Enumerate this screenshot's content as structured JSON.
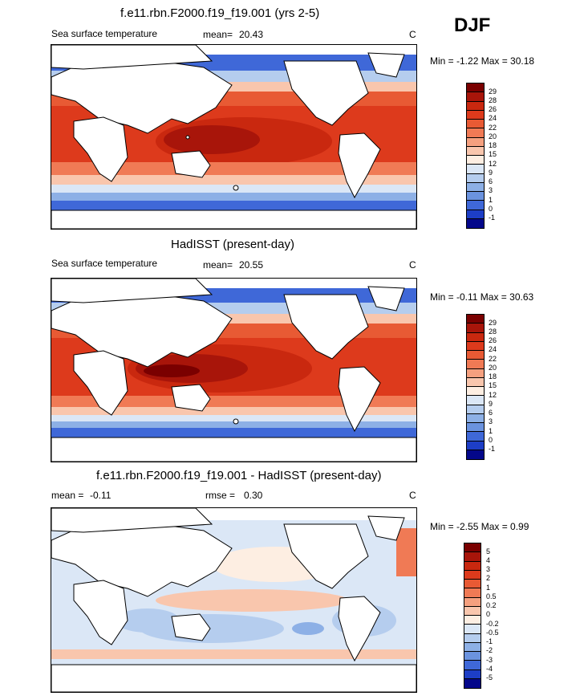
{
  "season": "DJF",
  "panels": [
    {
      "title": "f.e11.rbn.F2000.f19_f19.001 (yrs 2-5)",
      "left_label": "Sea surface temperature",
      "stat1_label": "mean=",
      "stat1_value": "20.43",
      "stat2_label": "",
      "stat2_value": "",
      "units": "C",
      "minmax": "Min =  -1.22 Max =  30.18",
      "colorbar": {
        "labels": [
          "29",
          "28",
          "26",
          "24",
          "22",
          "20",
          "18",
          "15",
          "12",
          "9",
          "6",
          "3",
          "1",
          "0",
          "-1"
        ],
        "colors": [
          "#7a0000",
          "#a8150a",
          "#c9280f",
          "#dd3a1c",
          "#e85a34",
          "#f07a55",
          "#f5a07f",
          "#f9c6ad",
          "#fdeee2",
          "#dbe7f6",
          "#b5cdee",
          "#8db0e6",
          "#6b93df",
          "#3f68d8",
          "#1d3ec6",
          "#04078a"
        ]
      }
    },
    {
      "title": "HadISST (present-day)",
      "left_label": "Sea surface temperature",
      "stat1_label": "mean=",
      "stat1_value": "20.55",
      "stat2_label": "",
      "stat2_value": "",
      "units": "C",
      "minmax": "Min =  -0.11 Max =  30.63",
      "colorbar": {
        "labels": [
          "29",
          "28",
          "26",
          "24",
          "22",
          "20",
          "18",
          "15",
          "12",
          "9",
          "6",
          "3",
          "1",
          "0",
          "-1"
        ],
        "colors": [
          "#7a0000",
          "#a8150a",
          "#c9280f",
          "#dd3a1c",
          "#e85a34",
          "#f07a55",
          "#f5a07f",
          "#f9c6ad",
          "#fdeee2",
          "#dbe7f6",
          "#b5cdee",
          "#8db0e6",
          "#6b93df",
          "#3f68d8",
          "#1d3ec6",
          "#04078a"
        ]
      }
    },
    {
      "title": "f.e11.rbn.F2000.f19_f19.001 - HadISST (present-day)",
      "left_label": "",
      "stat1_label": "mean =",
      "stat1_value": "-0.11",
      "stat2_label": "rmse =",
      "stat2_value": "0.30",
      "units": "C",
      "minmax": "Min =  -2.55 Max =   0.99",
      "colorbar": {
        "labels": [
          "5",
          "4",
          "3",
          "2",
          "1",
          "0.5",
          "0.2",
          "0",
          "-0.2",
          "-0.5",
          "-1",
          "-2",
          "-3",
          "-4",
          "-5"
        ],
        "colors": [
          "#7a0000",
          "#a8150a",
          "#c9280f",
          "#dd3a1c",
          "#e85a34",
          "#f07a55",
          "#f5a07f",
          "#f9c6ad",
          "#fdeee2",
          "#dbe7f6",
          "#b5cdee",
          "#8db0e6",
          "#6b93df",
          "#3f68d8",
          "#1d3ec6",
          "#04078a"
        ]
      }
    }
  ]
}
